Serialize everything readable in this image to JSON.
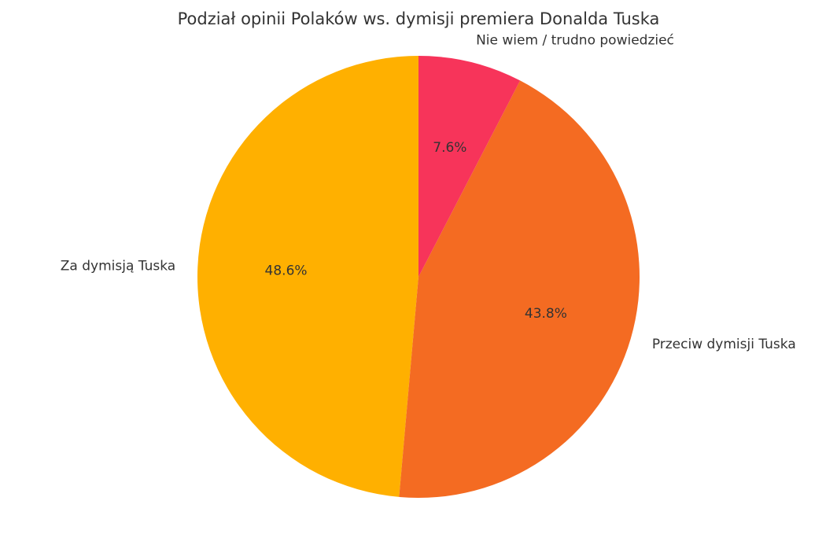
{
  "chart_data": {
    "type": "pie",
    "title": "Podział opinii Polaków ws. dymisji premiera Donalda Tuska",
    "slices": [
      {
        "label": "Za dymisją Tuska",
        "value": 48.6,
        "pct_label": "48.6%",
        "color": "#FFB000"
      },
      {
        "label": "Przeciw dymisji Tuska",
        "value": 43.8,
        "pct_label": "43.8%",
        "color": "#F46B22"
      },
      {
        "label": "Nie wiem / trudno powiedzieć",
        "value": 7.6,
        "pct_label": "7.6%",
        "color": "#F7345A"
      }
    ],
    "start_angle": 90,
    "direction": "counterclockwise"
  }
}
